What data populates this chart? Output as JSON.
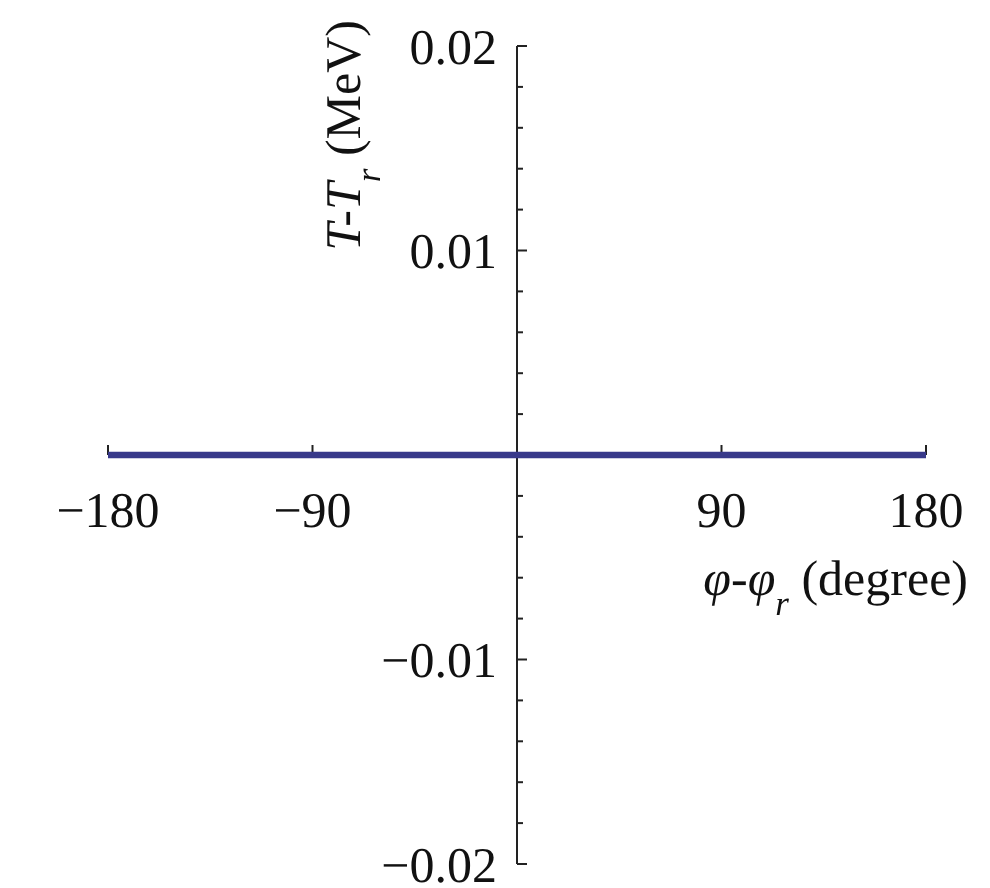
{
  "chart_data": {
    "type": "line",
    "xlabel": "φ-φ$_{r}$ (degree)",
    "ylabel": "T-T$_{r}$ (MeV)",
    "x": [
      -180,
      180
    ],
    "series": [
      {
        "color": "#38398a",
        "values": [
          0,
          0
        ]
      }
    ],
    "xlim": [
      -180,
      180
    ],
    "xticks": [
      -180,
      -90,
      90,
      180
    ],
    "ylim": [
      -0.02,
      0.02
    ],
    "yticks": [
      -0.02,
      {
        "value": -0.018,
        "label": null
      },
      {
        "value": -0.016,
        "label": null
      },
      {
        "value": -0.014,
        "label": null
      },
      {
        "value": -0.012,
        "label": null
      },
      -0.01,
      {
        "value": -0.008,
        "label": null
      },
      {
        "value": -0.006,
        "label": null
      },
      {
        "value": -0.004,
        "label": null
      },
      {
        "value": -0.002,
        "label": null
      },
      {
        "value": 0.002,
        "label": null
      },
      {
        "value": 0.004,
        "label": null
      },
      {
        "value": 0.006,
        "label": null
      },
      {
        "value": 0.008,
        "label": null
      },
      0.01,
      {
        "value": 0.012,
        "label": null
      },
      {
        "value": 0.014,
        "label": null
      },
      {
        "value": 0.016,
        "label": null
      },
      {
        "value": 0.018,
        "label": null
      },
      0.02
    ],
    "grid": false,
    "marker": "none",
    "line_style": "solid"
  }
}
